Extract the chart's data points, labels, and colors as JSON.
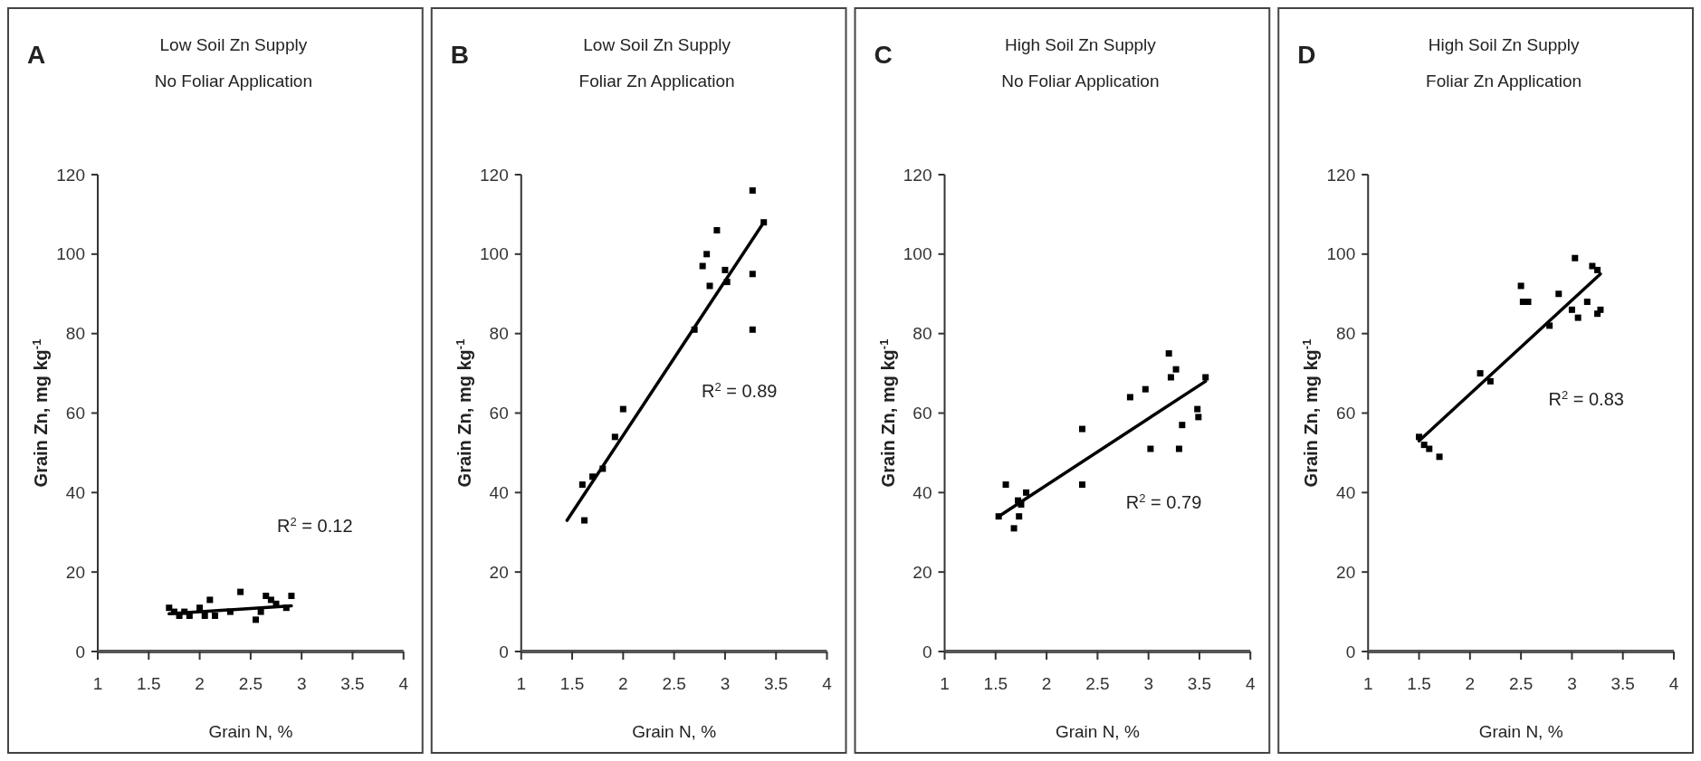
{
  "chart_data": [
    {
      "type": "scatter",
      "title": "Low Soil Zn Supply",
      "subtitle": "No Foliar Application",
      "xlabel": "Grain N, %",
      "ylabel": "Grain Zn, mg kg$^{-1}$",
      "annotations": [
        "A",
        "R$^{2}$ = 0.12"
      ],
      "xlim": [
        1,
        4
      ],
      "ylim": [
        0,
        120
      ],
      "xticks": [
        1,
        1.5,
        2,
        2.5,
        3,
        3.5,
        4
      ],
      "yticks": [
        0,
        20,
        40,
        60,
        80,
        100,
        120
      ],
      "series": [
        {
          "marker": "square",
          "color": "#000000",
          "x": [
            1.7,
            1.75,
            1.8,
            1.85,
            1.9,
            2.0,
            2.05,
            2.1,
            2.15,
            2.3,
            2.4,
            2.55,
            2.6,
            2.65,
            2.7,
            2.75,
            2.85,
            2.9
          ],
          "values": [
            11,
            10,
            9,
            10,
            9,
            11,
            9,
            13,
            9,
            10,
            15,
            8,
            10,
            14,
            13,
            12,
            11,
            14
          ]
        },
        {
          "type": "line",
          "marker": "none",
          "color": "#000000",
          "x": [
            1.7,
            2.9
          ],
          "values": [
            9.5,
            11.5
          ]
        }
      ]
    },
    {
      "type": "scatter",
      "title": "Low Soil Zn Supply",
      "subtitle": "Foliar Zn Application",
      "xlabel": "Grain N, %",
      "ylabel": "Grain Zn, mg kg$^{-1}$",
      "annotations": [
        "B",
        "R$^{2}$ = 0.89"
      ],
      "xlim": [
        1,
        4
      ],
      "ylim": [
        0,
        120
      ],
      "xticks": [
        1,
        1.5,
        2,
        2.5,
        3,
        3.5,
        4
      ],
      "yticks": [
        0,
        20,
        40,
        60,
        80,
        100,
        120
      ],
      "series": [
        {
          "marker": "square",
          "color": "#000000",
          "x": [
            1.6,
            1.62,
            1.7,
            1.8,
            1.92,
            2.0,
            2.7,
            2.78,
            2.82,
            2.85,
            2.92,
            3.0,
            3.02,
            3.27,
            3.27,
            3.27,
            3.38
          ],
          "values": [
            42,
            33,
            44,
            46,
            54,
            61,
            81,
            97,
            100,
            92,
            106,
            96,
            93,
            116,
            95,
            81,
            108
          ]
        },
        {
          "type": "line",
          "marker": "none",
          "color": "#000000",
          "x": [
            1.45,
            3.38
          ],
          "values": [
            33,
            108
          ]
        }
      ]
    },
    {
      "type": "scatter",
      "title": "High Soil Zn Supply",
      "subtitle": "No Foliar Application",
      "xlabel": "Grain N, %",
      "ylabel": "Grain Zn, mg kg$^{-1}$",
      "annotations": [
        "C",
        "R$^{2}$ = 0.79"
      ],
      "xlim": [
        1,
        4
      ],
      "ylim": [
        0,
        120
      ],
      "xticks": [
        1,
        1.5,
        2,
        2.5,
        3,
        3.5,
        4
      ],
      "yticks": [
        0,
        20,
        40,
        60,
        80,
        100,
        120
      ],
      "series": [
        {
          "marker": "square",
          "color": "#000000",
          "x": [
            1.53,
            1.6,
            1.68,
            1.72,
            1.73,
            1.75,
            1.8,
            2.35,
            2.35,
            2.82,
            2.97,
            3.02,
            3.2,
            3.22,
            3.27,
            3.3,
            3.33,
            3.48,
            3.49,
            3.56
          ],
          "values": [
            34,
            42,
            31,
            38,
            34,
            37,
            40,
            56,
            42,
            64,
            66,
            51,
            75,
            69,
            71,
            51,
            57,
            61,
            59,
            69
          ]
        },
        {
          "type": "line",
          "marker": "none",
          "color": "#000000",
          "x": [
            1.53,
            3.56
          ],
          "values": [
            34,
            68
          ]
        }
      ]
    },
    {
      "type": "scatter",
      "title": "High Soil Zn Supply",
      "subtitle": "Foliar Zn Application",
      "xlabel": "Grain N, %",
      "ylabel": "Grain Zn, mg kg$^{-1}$",
      "annotations": [
        "D",
        "R$^{2}$ = 0.83"
      ],
      "xlim": [
        1,
        4
      ],
      "ylim": [
        0,
        120
      ],
      "xticks": [
        1,
        1.5,
        2,
        2.5,
        3,
        3.5,
        4
      ],
      "yticks": [
        0,
        20,
        40,
        60,
        80,
        100,
        120
      ],
      "series": [
        {
          "marker": "square",
          "color": "#000000",
          "x": [
            1.5,
            1.55,
            1.6,
            1.7,
            2.1,
            2.2,
            2.5,
            2.52,
            2.57,
            2.78,
            2.87,
            3.0,
            3.03,
            3.06,
            3.15,
            3.2,
            3.25,
            3.25,
            3.28
          ],
          "values": [
            54,
            52,
            51,
            49,
            70,
            68,
            92,
            88,
            88,
            82,
            90,
            86,
            99,
            84,
            88,
            97,
            96,
            85,
            86
          ]
        },
        {
          "type": "line",
          "marker": "none",
          "color": "#000000",
          "x": [
            1.5,
            3.28
          ],
          "values": [
            53,
            95
          ]
        }
      ]
    }
  ]
}
